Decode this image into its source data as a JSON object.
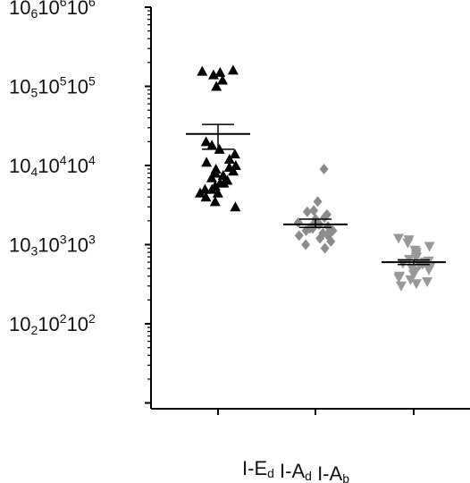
{
  "chart_data": {
    "type": "scatter",
    "yscale": "log",
    "ylim": [
      10,
      1000000
    ],
    "grid": false,
    "legend": "none",
    "title": "",
    "xlabel": "",
    "ylabel": "",
    "y_ticks": [
      {
        "value": 1000000,
        "base": "10",
        "sub": "6",
        "sup_text": "10",
        "sup": "6",
        "tail": "10",
        "tail_sup": "6"
      },
      {
        "value": 100000,
        "base": "10",
        "sub": "5",
        "sup_text": "10",
        "sup": "5",
        "tail": "10",
        "tail_sup": "5"
      },
      {
        "value": 10000,
        "base": "10",
        "sub": "4",
        "sup_text": "10",
        "sup": "4",
        "tail": "10",
        "tail_sup": "4"
      },
      {
        "value": 1000,
        "base": "10",
        "sub": "3",
        "sup_text": "10",
        "sup": "3",
        "tail": "10",
        "tail_sup": "3"
      },
      {
        "value": 100,
        "base": "10",
        "sub": "2",
        "sup_text": "10",
        "sup": "2",
        "tail": "10",
        "tail_sup": "2"
      }
    ],
    "categories": [
      {
        "base": "I-E",
        "sub": "d"
      },
      {
        "base": "I-A",
        "sub": "d"
      },
      {
        "base": "I-A",
        "sub": "b"
      }
    ],
    "series": [
      {
        "marker": "triangle-up",
        "color": "#000000",
        "mean": 25000,
        "sem_upper": 33000,
        "sem_lower": 16000,
        "values": [
          160000,
          155000,
          150000,
          140000,
          100000,
          120000,
          20000,
          18000,
          16000,
          14000,
          12000,
          11000,
          10000,
          9500,
          9000,
          8500,
          8000,
          7500,
          7000,
          6500,
          6000,
          6000,
          5500,
          5000,
          5000,
          4500,
          4500,
          4000,
          3500,
          3000
        ]
      },
      {
        "marker": "diamond",
        "color": "#8c8c8c",
        "mean": 1800,
        "sem_upper": 2100,
        "sem_lower": 1650,
        "values": [
          9000,
          3500,
          2700,
          2600,
          2400,
          2200,
          2100,
          2000,
          2000,
          1900,
          1800,
          1800,
          1700,
          1700,
          1600,
          1600,
          1500,
          1500,
          1400,
          1400,
          1300,
          1300,
          1200,
          1100,
          1000,
          900
        ]
      },
      {
        "marker": "triangle-down",
        "color": "#999999",
        "mean": 600,
        "sem_upper": 640,
        "sem_lower": 560,
        "values": [
          1200,
          1150,
          1050,
          950,
          850,
          800,
          750,
          700,
          680,
          650,
          620,
          600,
          580,
          560,
          550,
          520,
          500,
          480,
          460,
          440,
          420,
          400,
          380,
          360,
          340,
          320,
          300
        ]
      }
    ]
  }
}
